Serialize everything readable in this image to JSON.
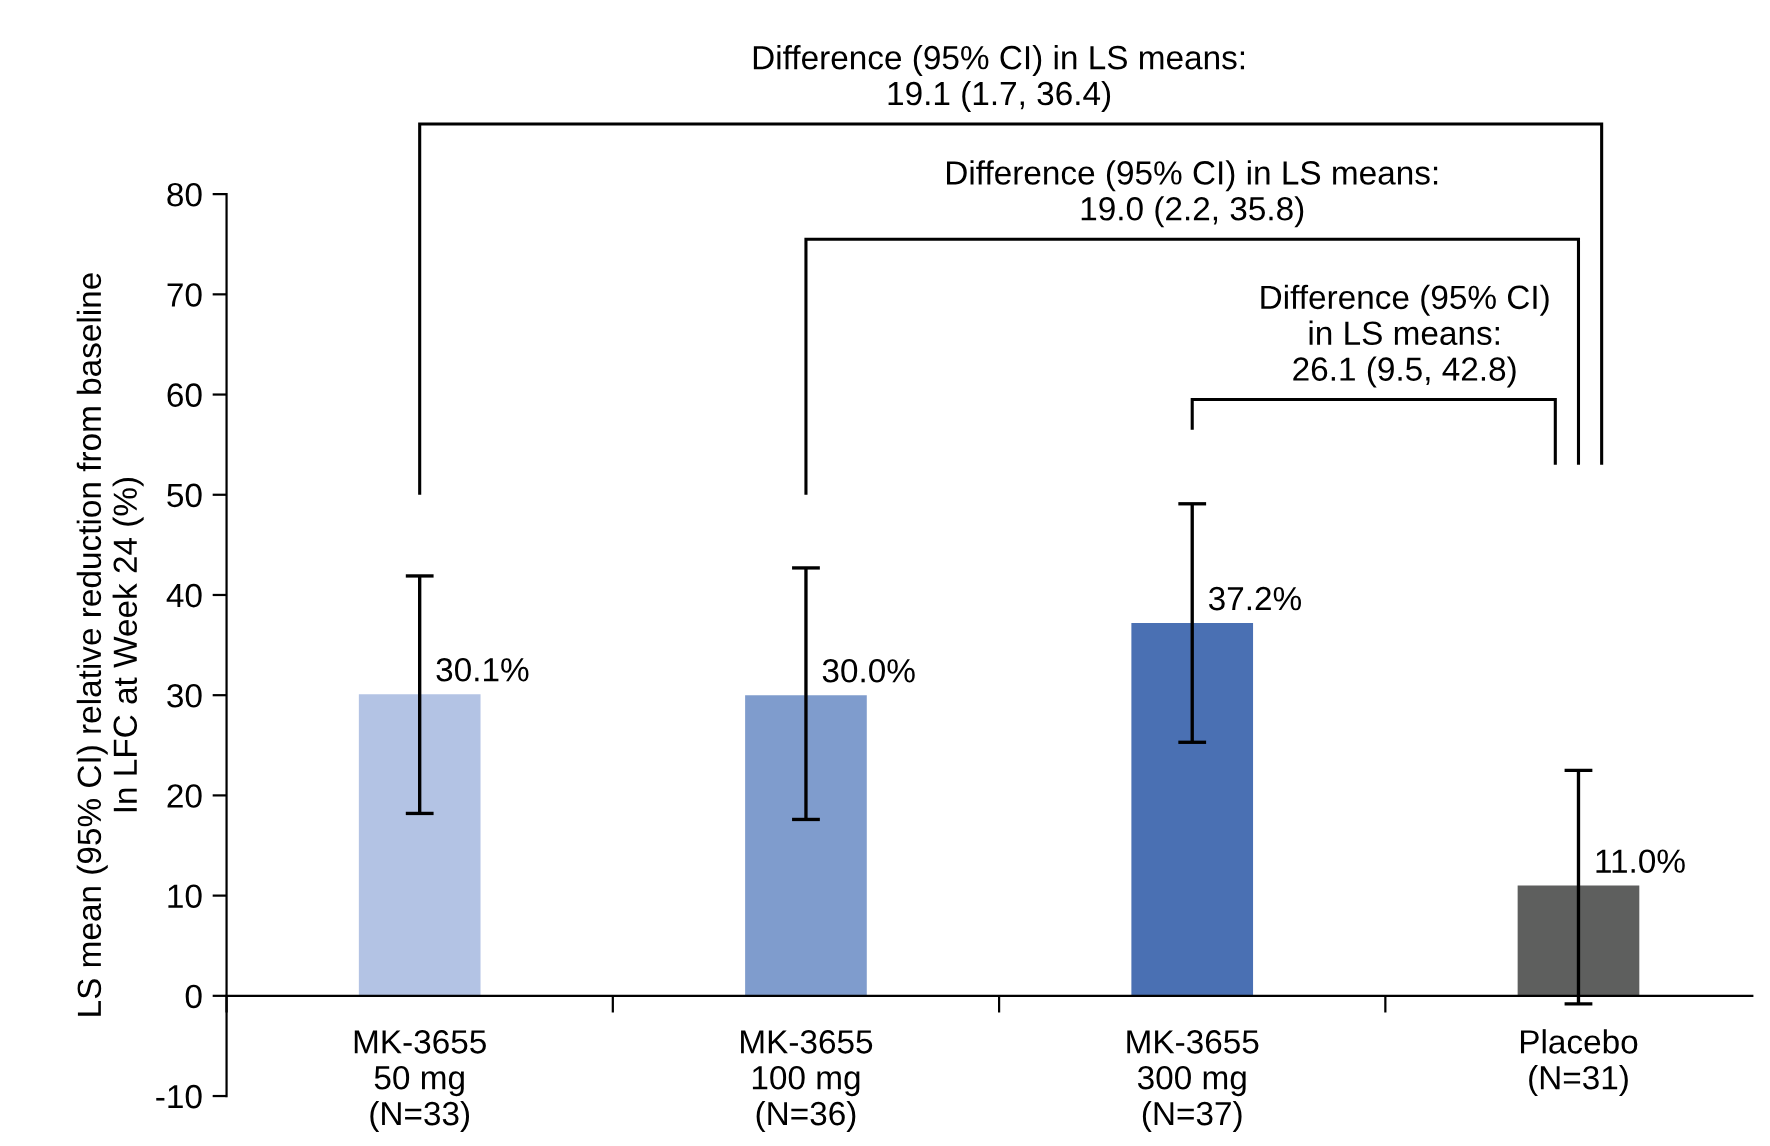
{
  "chart_data": {
    "type": "bar",
    "ylabel": "LS mean (95% CI) relative reduction from baseline\nIn LFC at Week 24 (%)",
    "categories": [
      "MK-3655\n50 mg\n(N=33)",
      "MK-3655\n100 mg\n(N=36)",
      "MK-3655\n300 mg\n(N=37)",
      "Placebo\n(N=31)"
    ],
    "values": [
      30.1,
      30.0,
      37.2,
      11.0
    ],
    "colors": [
      "#b3c3e4",
      "#7f9ccd",
      "#4a70b3",
      "#5e5f5e"
    ],
    "errors": [
      [
        18.2,
        41.9
      ],
      [
        17.6,
        42.7
      ],
      [
        25.3,
        49.1
      ],
      [
        -0.8,
        22.5
      ]
    ],
    "value_labels": [
      "30.1%",
      "30.0%",
      "37.2%",
      "11.0%"
    ],
    "ylim": [
      -10,
      80
    ],
    "yticks": [
      -10,
      0,
      10,
      20,
      30,
      40,
      50,
      60,
      70,
      80
    ],
    "annotations": [
      "Difference (95% CI) in LS means:\n19.1 (1.7, 36.4)",
      "Difference (95% CI) in LS means:\n19.0 (2.2, 35.8)",
      "Difference (95% CI)\nin LS means:\n26.1 (9.5, 42.8)"
    ],
    "grid": false,
    "legend": false
  }
}
